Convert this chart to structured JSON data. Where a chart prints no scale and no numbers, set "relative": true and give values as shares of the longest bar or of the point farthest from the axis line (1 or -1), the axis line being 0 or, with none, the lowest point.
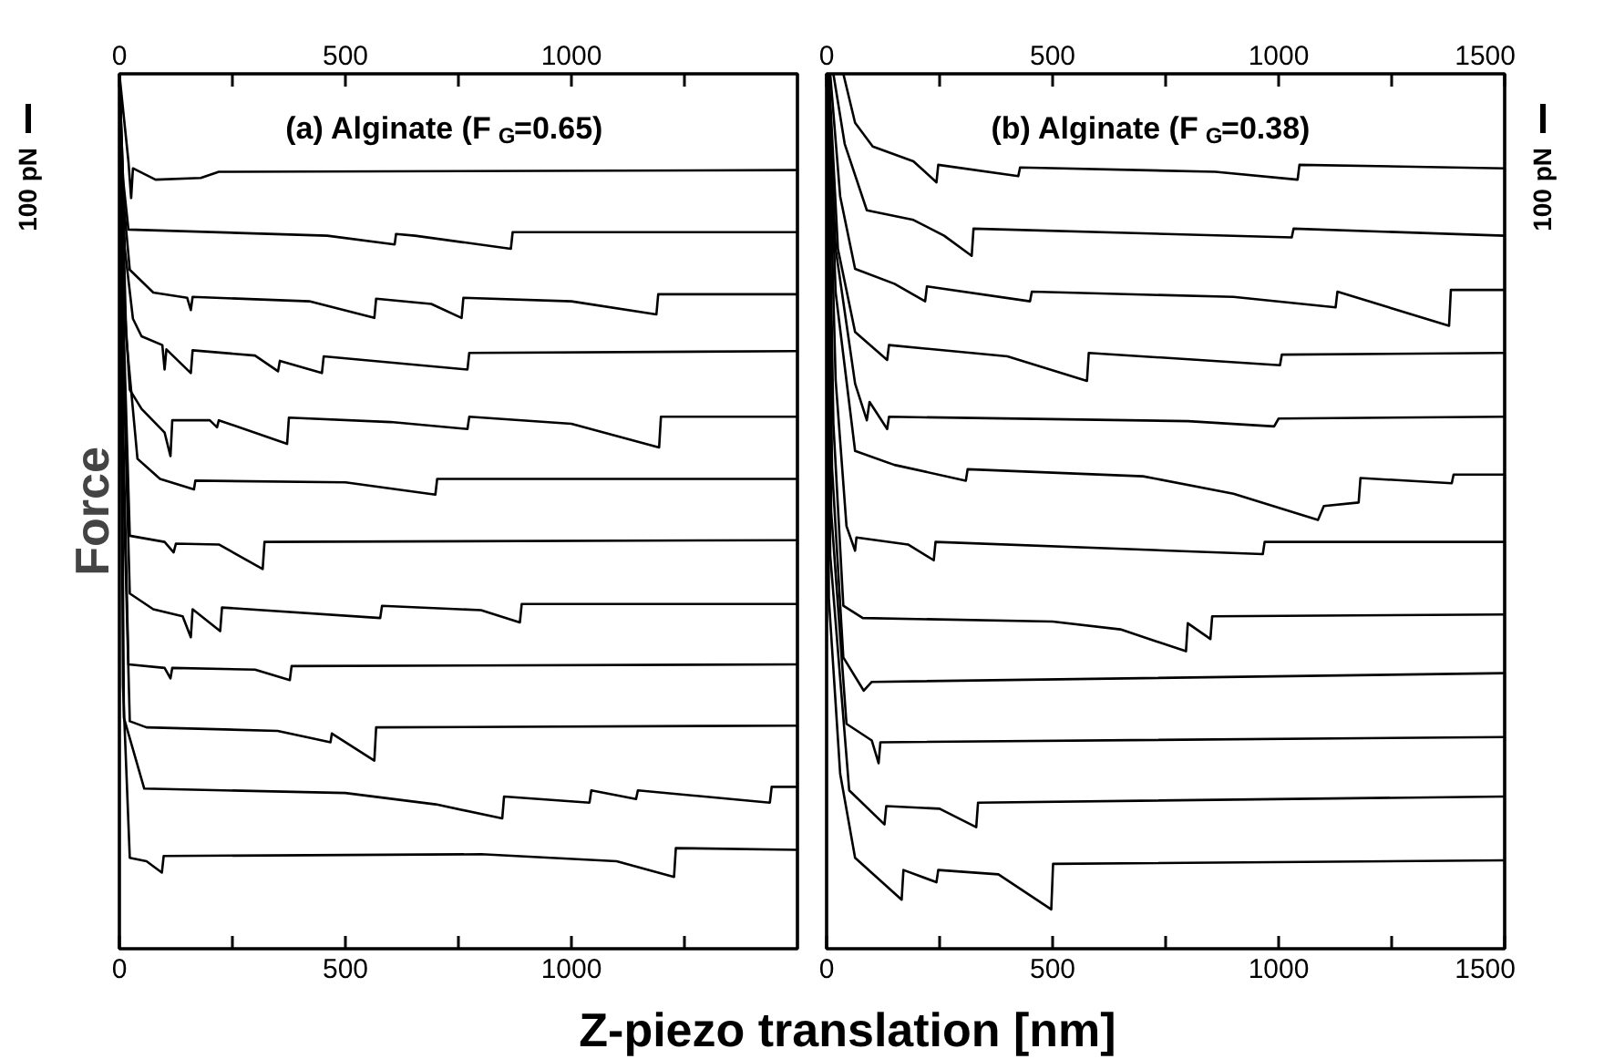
{
  "chart_data": [
    {
      "type": "line",
      "title": "(a)   Alginate (F$_{G}$=0.65)",
      "ylabel": "Force",
      "xlabel": "Z-piezo translation [nm]",
      "relative": true,
      "tick_labels": "x",
      "annotations": [
        "100 pN"
      ],
      "xlim": [
        0,
        1500
      ],
      "xticks": [
        0,
        {
          "value": 250,
          "label": null
        },
        500,
        {
          "value": 750,
          "label": null
        },
        1000,
        {
          "value": 1250,
          "label": null
        }
      ],
      "x2lim": [
        0,
        1500
      ],
      "x2ticks": [
        0,
        {
          "value": 250,
          "label": null
        },
        500,
        {
          "value": 750,
          "label": null
        },
        1000,
        {
          "value": 1250,
          "label": null
        }
      ],
      "series": [
        {
          "color": "#000000",
          "x": [
            0,
            10,
            20,
            26,
            30,
            80,
            180,
            220,
            1500
          ],
          "values": [
            1.0,
            0.95,
            0.9,
            0.858,
            0.892,
            0.879,
            0.881,
            0.888,
            0.89
          ]
        },
        {
          "color": "#000000",
          "x": [
            0,
            8,
            20,
            460,
            609,
            612,
            654,
            866,
            870,
            1500
          ],
          "values": [
            1.0,
            0.88,
            0.822,
            0.815,
            0.805,
            0.817,
            0.815,
            0.8,
            0.819,
            0.819
          ]
        },
        {
          "color": "#000000",
          "x": [
            0,
            10,
            23,
            75,
            150,
            158,
            162,
            420,
            564,
            568,
            690,
            757,
            761,
            1000,
            1188,
            1192,
            1500
          ],
          "values": [
            1.0,
            0.85,
            0.776,
            0.75,
            0.744,
            0.73,
            0.745,
            0.74,
            0.721,
            0.743,
            0.737,
            0.721,
            0.744,
            0.74,
            0.725,
            0.748,
            0.748
          ]
        },
        {
          "color": "#000000",
          "x": [
            0,
            12,
            30,
            49,
            95,
            100,
            104,
            158,
            162,
            300,
            351,
            355,
            448,
            452,
            770,
            774,
            1500
          ],
          "values": [
            1.0,
            0.8,
            0.72,
            0.7,
            0.69,
            0.662,
            0.685,
            0.658,
            0.684,
            0.678,
            0.66,
            0.672,
            0.658,
            0.677,
            0.662,
            0.681,
            0.683
          ]
        },
        {
          "color": "#000000",
          "x": [
            0,
            10,
            23,
            49,
            100,
            113,
            117,
            200,
            216,
            220,
            371,
            375,
            600,
            770,
            774,
            1000,
            1194,
            1198,
            1500
          ],
          "values": [
            1.0,
            0.75,
            0.639,
            0.617,
            0.59,
            0.563,
            0.604,
            0.604,
            0.596,
            0.604,
            0.577,
            0.607,
            0.602,
            0.594,
            0.608,
            0.6,
            0.573,
            0.608,
            0.608
          ]
        },
        {
          "color": "#000000",
          "x": [
            0,
            15,
            40,
            90,
            165,
            168,
            500,
            699,
            703,
            1500
          ],
          "values": [
            1.0,
            0.7,
            0.56,
            0.537,
            0.525,
            0.535,
            0.533,
            0.519,
            0.537,
            0.537
          ]
        },
        {
          "color": "#000000",
          "x": [
            0,
            10,
            23,
            100,
            120,
            125,
            220,
            317,
            321,
            1500
          ],
          "values": [
            1.0,
            0.7,
            0.472,
            0.465,
            0.453,
            0.463,
            0.462,
            0.434,
            0.465,
            0.467
          ]
        },
        {
          "color": "#000000",
          "x": [
            0,
            10,
            23,
            75,
            140,
            158,
            162,
            223,
            227,
            577,
            581,
            800,
            886,
            890,
            1500
          ],
          "values": [
            1.0,
            0.65,
            0.406,
            0.388,
            0.38,
            0.356,
            0.388,
            0.363,
            0.39,
            0.378,
            0.392,
            0.387,
            0.373,
            0.394,
            0.394
          ]
        },
        {
          "color": "#000000",
          "x": [
            0,
            8,
            20,
            100,
            113,
            117,
            300,
            377,
            381,
            1500
          ],
          "values": [
            1.0,
            0.6,
            0.325,
            0.321,
            0.309,
            0.321,
            0.319,
            0.307,
            0.323,
            0.325
          ]
        },
        {
          "color": "#000000",
          "x": [
            0,
            8,
            23,
            60,
            350,
            430,
            467,
            470,
            564,
            568,
            1500
          ],
          "values": [
            1.0,
            0.55,
            0.26,
            0.253,
            0.249,
            0.24,
            0.236,
            0.246,
            0.215,
            0.253,
            0.255
          ]
        },
        {
          "color": "#000000",
          "x": [
            0,
            10,
            55,
            500,
            700,
            847,
            851,
            1040,
            1044,
            1143,
            1147,
            1439,
            1443,
            1500
          ],
          "values": [
            1.0,
            0.264,
            0.183,
            0.178,
            0.165,
            0.149,
            0.174,
            0.167,
            0.181,
            0.171,
            0.181,
            0.167,
            0.185,
            0.185
          ]
        },
        {
          "color": "#000000",
          "x": [
            0,
            8,
            23,
            60,
            94,
            98,
            800,
            1100,
            1227,
            1231,
            1500
          ],
          "values": [
            1.0,
            0.3,
            0.104,
            0.1,
            0.087,
            0.106,
            0.108,
            0.1,
            0.082,
            0.115,
            0.113
          ]
        }
      ]
    },
    {
      "type": "line",
      "title": "(b)   Alginate (F$_{G}$=0.38)",
      "relative": true,
      "tick_labels": "x",
      "annotations": [
        "100 pN"
      ],
      "xlim": [
        0,
        1500
      ],
      "xticks": [
        0,
        {
          "value": 250,
          "label": null
        },
        500,
        {
          "value": 750,
          "label": null
        },
        1000,
        {
          "value": 1250,
          "label": null
        },
        1500
      ],
      "x2lim": [
        0,
        1500
      ],
      "x2ticks": [
        0,
        {
          "value": 250,
          "label": null
        },
        500,
        {
          "value": 750,
          "label": null
        },
        1000,
        {
          "value": 1250,
          "label": null
        },
        1500
      ],
      "series": [
        {
          "color": "#000000",
          "x": [
            37,
            63,
            102,
            192,
            243,
            247,
            424,
            428,
            860,
            1042,
            1046,
            1500
          ],
          "values": [
            1.0,
            0.944,
            0.917,
            0.9,
            0.876,
            0.896,
            0.883,
            0.893,
            0.888,
            0.879,
            0.896,
            0.892
          ]
        },
        {
          "color": "#000000",
          "x": [
            15,
            40,
            89,
            192,
            260,
            321,
            325,
            1029,
            1033,
            1500
          ],
          "values": [
            1.0,
            0.92,
            0.844,
            0.833,
            0.815,
            0.792,
            0.823,
            0.813,
            0.823,
            0.815
          ]
        },
        {
          "color": "#000000",
          "x": [
            8,
            30,
            63,
            150,
            218,
            222,
            450,
            454,
            900,
            1126,
            1130,
            1377,
            1381,
            1500
          ],
          "values": [
            1.0,
            0.86,
            0.777,
            0.76,
            0.74,
            0.757,
            0.74,
            0.751,
            0.745,
            0.733,
            0.751,
            0.712,
            0.753,
            0.753
          ]
        },
        {
          "color": "#000000",
          "x": [
            5,
            25,
            63,
            134,
            138,
            400,
            576,
            580,
            1003,
            1007,
            1500
          ],
          "values": [
            1.0,
            0.8,
            0.705,
            0.673,
            0.69,
            0.677,
            0.649,
            0.681,
            0.667,
            0.679,
            0.681
          ]
        },
        {
          "color": "#000000",
          "x": [
            3,
            20,
            63,
            89,
            95,
            134,
            138,
            800,
            990,
            1000,
            1500
          ],
          "values": [
            1.0,
            0.8,
            0.646,
            0.604,
            0.625,
            0.594,
            0.608,
            0.603,
            0.597,
            0.606,
            0.608
          ]
        },
        {
          "color": "#000000",
          "x": [
            3,
            20,
            63,
            150,
            308,
            312,
            700,
            900,
            1087,
            1100,
            1177,
            1181,
            1383,
            1387,
            1500
          ],
          "values": [
            1.0,
            0.75,
            0.569,
            0.553,
            0.535,
            0.548,
            0.54,
            0.52,
            0.49,
            0.506,
            0.51,
            0.538,
            0.532,
            0.542,
            0.542
          ]
        },
        {
          "color": "#000000",
          "x": [
            2,
            20,
            44,
            63,
            66,
            180,
            237,
            241,
            965,
            969,
            1500
          ],
          "values": [
            1.0,
            0.65,
            0.483,
            0.455,
            0.47,
            0.462,
            0.444,
            0.465,
            0.451,
            0.465,
            0.465
          ]
        },
        {
          "color": "#000000",
          "x": [
            2,
            15,
            37,
            80,
            500,
            650,
            795,
            799,
            849,
            853,
            1500
          ],
          "values": [
            1.0,
            0.6,
            0.392,
            0.378,
            0.374,
            0.365,
            0.34,
            0.372,
            0.354,
            0.38,
            0.382
          ]
        },
        {
          "color": "#000000",
          "x": [
            1,
            12,
            37,
            82,
            100,
            1500
          ],
          "values": [
            1.0,
            0.55,
            0.333,
            0.295,
            0.305,
            0.315
          ]
        },
        {
          "color": "#000000",
          "x": [
            1,
            10,
            44,
            100,
            115,
            119,
            1500
          ],
          "values": [
            1.0,
            0.5,
            0.257,
            0.238,
            0.212,
            0.236,
            0.242
          ]
        },
        {
          "color": "#000000",
          "x": [
            0,
            8,
            50,
            128,
            132,
            250,
            331,
            335,
            1500
          ],
          "values": [
            1.0,
            0.45,
            0.181,
            0.142,
            0.163,
            0.16,
            0.139,
            0.167,
            0.174
          ]
        },
        {
          "color": "#000000",
          "x": [
            0,
            5,
            30,
            63,
            166,
            170,
            243,
            247,
            380,
            497,
            501,
            1500
          ],
          "values": [
            1.0,
            0.4,
            0.2,
            0.104,
            0.056,
            0.09,
            0.076,
            0.09,
            0.085,
            0.045,
            0.097,
            0.101
          ]
        }
      ]
    }
  ]
}
